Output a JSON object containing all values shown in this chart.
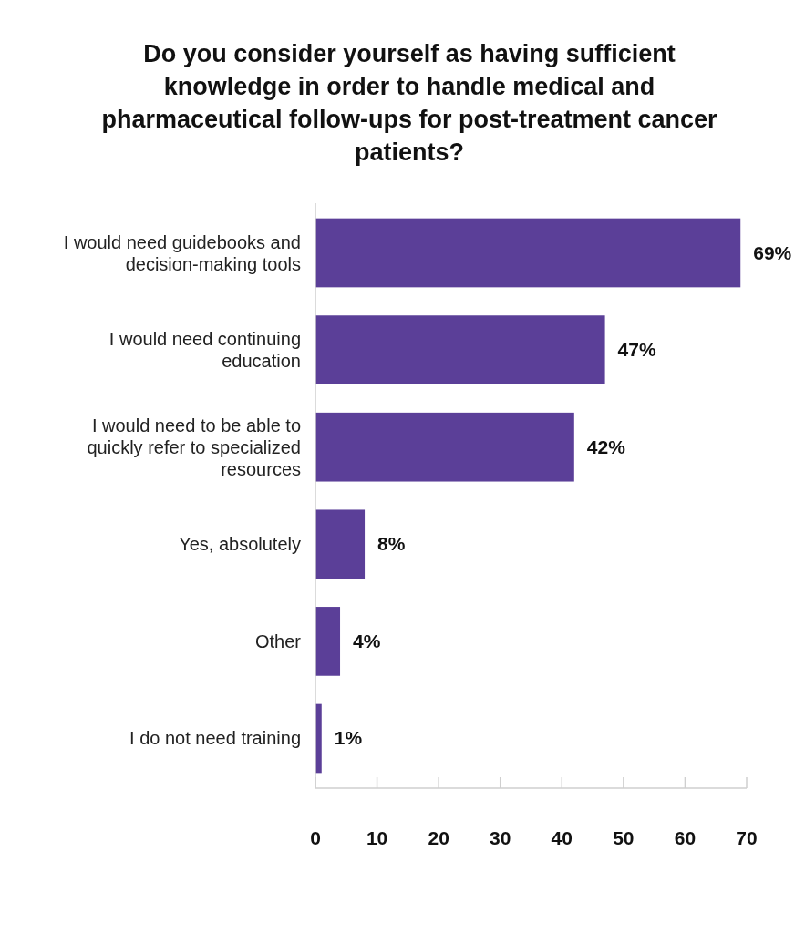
{
  "chart_data": {
    "type": "bar",
    "orientation": "horizontal",
    "title": "Do you consider yourself as having sufficient knowledge in order to handle medical and pharmaceutical follow-ups for post-treatment cancer patients?",
    "categories": [
      "I would need guidebooks and decision-making tools",
      "I would need continuing education",
      "I would need to be able to quickly refer to specialized resources",
      "Yes, absolutely",
      "Other",
      "I do not need training"
    ],
    "values": [
      69,
      47,
      42,
      8,
      4,
      1
    ],
    "value_labels": [
      "69%",
      "47%",
      "42%",
      "8%",
      "4%",
      "1%"
    ],
    "color": "#5b3f98",
    "xlim": [
      0,
      70
    ],
    "xticks": [
      0,
      10,
      20,
      30,
      40,
      50,
      60,
      70
    ]
  }
}
